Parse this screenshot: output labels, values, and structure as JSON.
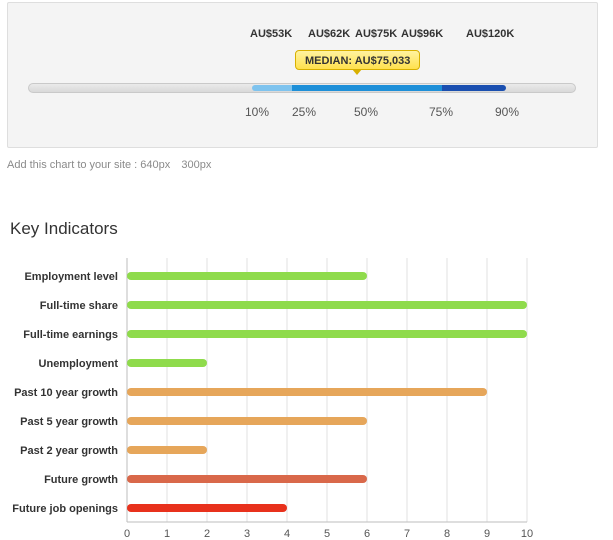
{
  "salary": {
    "values": [
      "AU$53K",
      "AU$62K",
      "AU$75K",
      "AU$96K",
      "AU$120K"
    ],
    "median_label": "MEDIAN: AU$75,033",
    "percentiles": [
      "10%",
      "25%",
      "50%",
      "75%",
      "90%"
    ],
    "colors": {
      "outer_band": "#7ec3ee",
      "inner_band": "#1d8fd8",
      "upper_band": "#1a4fb0",
      "tooltip": "#ffe14d"
    }
  },
  "embed": {
    "text": "Add this chart to your site :",
    "option_640": "640px",
    "option_300": "300px"
  },
  "section_title": "Key Indicators",
  "chart_data": {
    "type": "bar",
    "orientation": "horizontal",
    "categories": [
      "Employment level",
      "Full-time share",
      "Full-time earnings",
      "Unemployment",
      "Past 10 year growth",
      "Past 5 year growth",
      "Past 2 year growth",
      "Future growth",
      "Future job openings"
    ],
    "values": [
      6,
      10,
      10,
      2,
      9,
      6,
      2,
      6,
      4
    ],
    "colors": [
      "#8fdb4c",
      "#8fdb4c",
      "#8fdb4c",
      "#8fdb4c",
      "#e6a65a",
      "#e6a65a",
      "#e6a65a",
      "#d9684a",
      "#e8311c"
    ],
    "xlim": [
      0,
      10
    ],
    "xticks": [
      "0",
      "1",
      "2",
      "3",
      "4",
      "5",
      "6",
      "7",
      "8",
      "9",
      "10"
    ],
    "grid": true
  }
}
